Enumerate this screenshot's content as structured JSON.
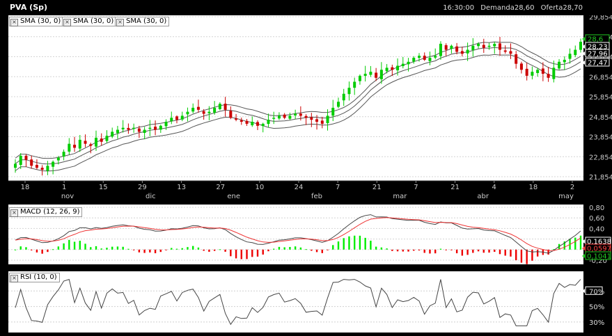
{
  "header": {
    "symbol": "PVA (Sp)",
    "time": "16:30:00",
    "bid": "Demanda28,60",
    "ask": "Oferta28,70"
  },
  "indicators": {
    "sma": [
      "SMA (30, 0)",
      "SMA (30, 0)",
      "SMA (30, 0)"
    ],
    "macd": "MACD (12, 26, 9)",
    "rsi": "RSI (10, 0)"
  },
  "chart_data": [
    {
      "type": "candlestick",
      "title": "PVA (Sp)",
      "x_tick_labels": [
        "18",
        "1",
        "15",
        "29",
        "13",
        "27",
        "10",
        "24",
        "7",
        "21",
        "7",
        "21",
        "4",
        "18",
        "2"
      ],
      "x_month_labels": [
        "nov",
        "dic",
        "ene",
        "feb",
        "mar",
        "abr",
        "may"
      ],
      "y_tick_labels": [
        "29,854",
        "28,854",
        "27,854",
        "26,854",
        "25,854",
        "24,854",
        "23,854",
        "22,854",
        "21,854"
      ],
      "ylim": [
        21.854,
        29.854
      ],
      "last_value_labels": [
        {
          "value": "28,6",
          "color": "#22cc22"
        },
        {
          "value": "28,23",
          "color": "#ffffff"
        },
        {
          "value": "27,96",
          "color": "#ffffff"
        },
        {
          "value": "27,47",
          "color": "#ffffff"
        }
      ],
      "close": [
        22.5,
        22.9,
        22.7,
        22.4,
        22.3,
        22.2,
        22.4,
        22.6,
        22.8,
        23.1,
        23.5,
        23.3,
        23.7,
        23.5,
        23.4,
        23.8,
        23.6,
        23.9,
        24.1,
        24.2,
        24.3,
        24.2,
        24.3,
        24.1,
        24.2,
        24.3,
        24.2,
        24.4,
        24.6,
        24.8,
        24.7,
        24.9,
        25.1,
        25.3,
        25.2,
        25.0,
        25.1,
        25.3,
        25.5,
        25.2,
        24.8,
        24.7,
        24.6,
        24.5,
        24.6,
        24.4,
        24.5,
        24.7,
        24.8,
        24.9,
        24.8,
        24.9,
        25.0,
        24.9,
        24.8,
        24.7,
        24.6,
        24.5,
        24.9,
        25.3,
        25.6,
        26.0,
        26.3,
        26.6,
        26.9,
        27.0,
        27.1,
        26.8,
        27.2,
        27.3,
        27.2,
        27.4,
        27.5,
        27.6,
        27.8,
        27.9,
        27.7,
        27.8,
        27.9,
        28.5,
        28.2,
        28.4,
        28.1,
        28.0,
        28.2,
        28.4,
        28.5,
        28.3,
        28.4,
        28.5,
        28.2,
        28.1,
        28.0,
        27.5,
        27.2,
        26.9,
        27.1,
        27.2,
        27.0,
        26.8,
        27.3,
        27.6,
        27.7,
        28.0,
        28.2,
        28.6
      ],
      "series": [
        {
          "name": "SMA (30, 0)",
          "role": "upper",
          "last": 28.23
        },
        {
          "name": "SMA (30, 0)",
          "role": "middle",
          "last": 27.96
        },
        {
          "name": "SMA (30, 0)",
          "role": "lower",
          "last": 27.47
        }
      ],
      "colors": {
        "up": "#00cc00",
        "down": "#cc0000",
        "background": "#ffffff",
        "sma": "#555555"
      }
    },
    {
      "type": "line",
      "title": "MACD (12, 26, 9)",
      "y_tick_labels": [
        "0,80",
        "0,60",
        "0,40",
        "0,20",
        "0,00",
        "-0,20"
      ],
      "ylim": [
        -0.2,
        0.8
      ],
      "last_value_labels": [
        {
          "value": "0,1638",
          "color": "#ffffff"
        },
        {
          "value": "0,0597",
          "color": "#ff4444"
        },
        {
          "value": "0,1041",
          "color": "#22cc22"
        }
      ],
      "colors": {
        "macd": "#444444",
        "signal": "#ee3333",
        "hist_pos": "#00ee00",
        "hist_neg": "#ee0000"
      }
    },
    {
      "type": "line",
      "title": "RSI (10, 0)",
      "y_tick_labels": [
        "70%",
        "50%",
        "30%"
      ],
      "ylim": [
        20,
        90
      ],
      "levels": [
        70,
        50,
        30
      ],
      "colors": {
        "rsi": "#444444"
      }
    }
  ]
}
